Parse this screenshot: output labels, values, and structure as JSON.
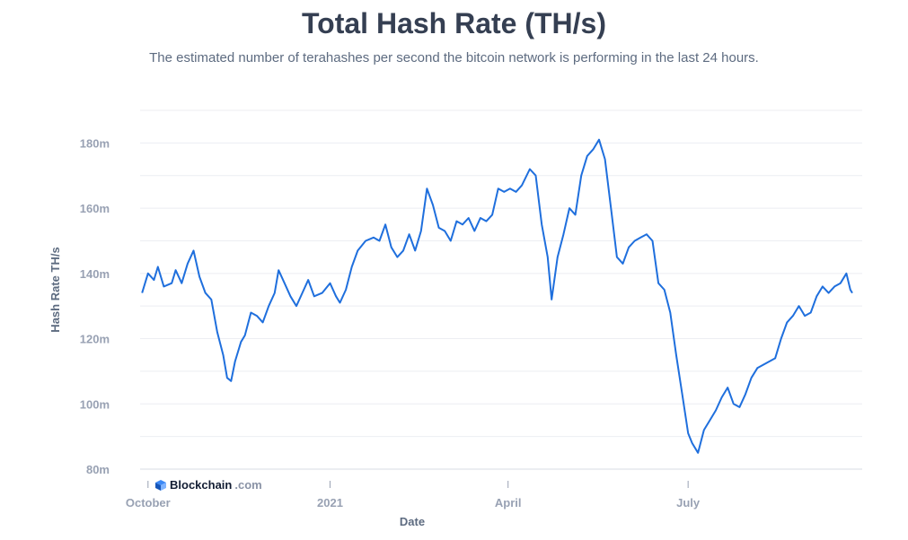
{
  "chart_data": {
    "type": "line",
    "title": "Total Hash Rate (TH/s)",
    "subtitle": "The estimated number of terahashes per second the bitcoin network is performing in the last 24 hours.",
    "xlabel": "Date",
    "ylabel": "Hash Rate TH/s",
    "x_ticks": [
      {
        "label": "October",
        "date": "2020-10-01"
      },
      {
        "label": "2021",
        "date": "2021-01-01"
      },
      {
        "label": "April",
        "date": "2021-04-01"
      },
      {
        "label": "July",
        "date": "2021-07-01"
      }
    ],
    "y_ticks": [
      {
        "label": "80m",
        "value": 80
      },
      {
        "label": "100m",
        "value": 100
      },
      {
        "label": "120m",
        "value": 120
      },
      {
        "label": "140m",
        "value": 140
      },
      {
        "label": "160m",
        "value": 160
      },
      {
        "label": "180m",
        "value": 180
      }
    ],
    "y_unit": "million TH/s",
    "xlim": [
      "2020-09-27",
      "2021-09-27"
    ],
    "ylim": [
      80,
      190
    ],
    "grid": true,
    "color": "#1f6fdd",
    "series": [
      {
        "values": [
          [
            "2020-09-28",
            134
          ],
          [
            "2020-10-01",
            140
          ],
          [
            "2020-10-04",
            138
          ],
          [
            "2020-10-06",
            142
          ],
          [
            "2020-10-09",
            136
          ],
          [
            "2020-10-13",
            137
          ],
          [
            "2020-10-15",
            141
          ],
          [
            "2020-10-18",
            137
          ],
          [
            "2020-10-21",
            143
          ],
          [
            "2020-10-24",
            147
          ],
          [
            "2020-10-27",
            139
          ],
          [
            "2020-10-30",
            134
          ],
          [
            "2020-11-02",
            132
          ],
          [
            "2020-11-05",
            122
          ],
          [
            "2020-11-08",
            115
          ],
          [
            "2020-11-10",
            108
          ],
          [
            "2020-11-12",
            107
          ],
          [
            "2020-11-14",
            113
          ],
          [
            "2020-11-17",
            119
          ],
          [
            "2020-11-19",
            121
          ],
          [
            "2020-11-22",
            128
          ],
          [
            "2020-11-25",
            127
          ],
          [
            "2020-11-28",
            125
          ],
          [
            "2020-12-01",
            130
          ],
          [
            "2020-12-04",
            134
          ],
          [
            "2020-12-06",
            141
          ],
          [
            "2020-12-09",
            137
          ],
          [
            "2020-12-12",
            133
          ],
          [
            "2020-12-15",
            130
          ],
          [
            "2020-12-18",
            134
          ],
          [
            "2020-12-21",
            138
          ],
          [
            "2020-12-24",
            133
          ],
          [
            "2020-12-28",
            134
          ],
          [
            "2021-01-01",
            137
          ],
          [
            "2021-01-04",
            133
          ],
          [
            "2021-01-06",
            131
          ],
          [
            "2021-01-09",
            135
          ],
          [
            "2021-01-12",
            142
          ],
          [
            "2021-01-15",
            147
          ],
          [
            "2021-01-19",
            150
          ],
          [
            "2021-01-23",
            151
          ],
          [
            "2021-01-26",
            150
          ],
          [
            "2021-01-29",
            155
          ],
          [
            "2021-02-01",
            148
          ],
          [
            "2021-02-04",
            145
          ],
          [
            "2021-02-07",
            147
          ],
          [
            "2021-02-10",
            152
          ],
          [
            "2021-02-13",
            147
          ],
          [
            "2021-02-16",
            153
          ],
          [
            "2021-02-19",
            166
          ],
          [
            "2021-02-22",
            161
          ],
          [
            "2021-02-25",
            154
          ],
          [
            "2021-02-28",
            153
          ],
          [
            "2021-03-03",
            150
          ],
          [
            "2021-03-06",
            156
          ],
          [
            "2021-03-09",
            155
          ],
          [
            "2021-03-12",
            157
          ],
          [
            "2021-03-15",
            153
          ],
          [
            "2021-03-18",
            157
          ],
          [
            "2021-03-21",
            156
          ],
          [
            "2021-03-24",
            158
          ],
          [
            "2021-03-27",
            166
          ],
          [
            "2021-03-30",
            165
          ],
          [
            "2021-04-02",
            166
          ],
          [
            "2021-04-05",
            165
          ],
          [
            "2021-04-08",
            167
          ],
          [
            "2021-04-12",
            172
          ],
          [
            "2021-04-15",
            170
          ],
          [
            "2021-04-18",
            155
          ],
          [
            "2021-04-21",
            145
          ],
          [
            "2021-04-23",
            132
          ],
          [
            "2021-04-26",
            145
          ],
          [
            "2021-04-29",
            152
          ],
          [
            "2021-05-02",
            160
          ],
          [
            "2021-05-05",
            158
          ],
          [
            "2021-05-08",
            170
          ],
          [
            "2021-05-11",
            176
          ],
          [
            "2021-05-14",
            178
          ],
          [
            "2021-05-17",
            181
          ],
          [
            "2021-05-20",
            175
          ],
          [
            "2021-05-23",
            160
          ],
          [
            "2021-05-26",
            145
          ],
          [
            "2021-05-29",
            143
          ],
          [
            "2021-06-01",
            148
          ],
          [
            "2021-06-04",
            150
          ],
          [
            "2021-06-07",
            151
          ],
          [
            "2021-06-10",
            152
          ],
          [
            "2021-06-13",
            150
          ],
          [
            "2021-06-16",
            137
          ],
          [
            "2021-06-19",
            135
          ],
          [
            "2021-06-22",
            128
          ],
          [
            "2021-06-25",
            115
          ],
          [
            "2021-06-28",
            103
          ],
          [
            "2021-07-01",
            91
          ],
          [
            "2021-07-03",
            88
          ],
          [
            "2021-07-06",
            85
          ],
          [
            "2021-07-09",
            92
          ],
          [
            "2021-07-12",
            95
          ],
          [
            "2021-07-15",
            98
          ],
          [
            "2021-07-18",
            102
          ],
          [
            "2021-07-21",
            105
          ],
          [
            "2021-07-24",
            100
          ],
          [
            "2021-07-27",
            99
          ],
          [
            "2021-07-30",
            103
          ],
          [
            "2021-08-02",
            108
          ],
          [
            "2021-08-05",
            111
          ],
          [
            "2021-08-08",
            112
          ],
          [
            "2021-08-11",
            113
          ],
          [
            "2021-08-14",
            114
          ],
          [
            "2021-08-17",
            120
          ],
          [
            "2021-08-20",
            125
          ],
          [
            "2021-08-23",
            127
          ],
          [
            "2021-08-26",
            130
          ],
          [
            "2021-08-29",
            127
          ],
          [
            "2021-09-01",
            128
          ],
          [
            "2021-09-04",
            133
          ],
          [
            "2021-09-07",
            136
          ],
          [
            "2021-09-10",
            134
          ],
          [
            "2021-09-13",
            136
          ],
          [
            "2021-09-16",
            137
          ],
          [
            "2021-09-19",
            140
          ],
          [
            "2021-09-21",
            135
          ],
          [
            "2021-09-22",
            134
          ]
        ]
      }
    ]
  },
  "watermark": {
    "brand": "Blockchain",
    "tld": ".com",
    "logo_icon": "blockchain-logo-icon"
  }
}
